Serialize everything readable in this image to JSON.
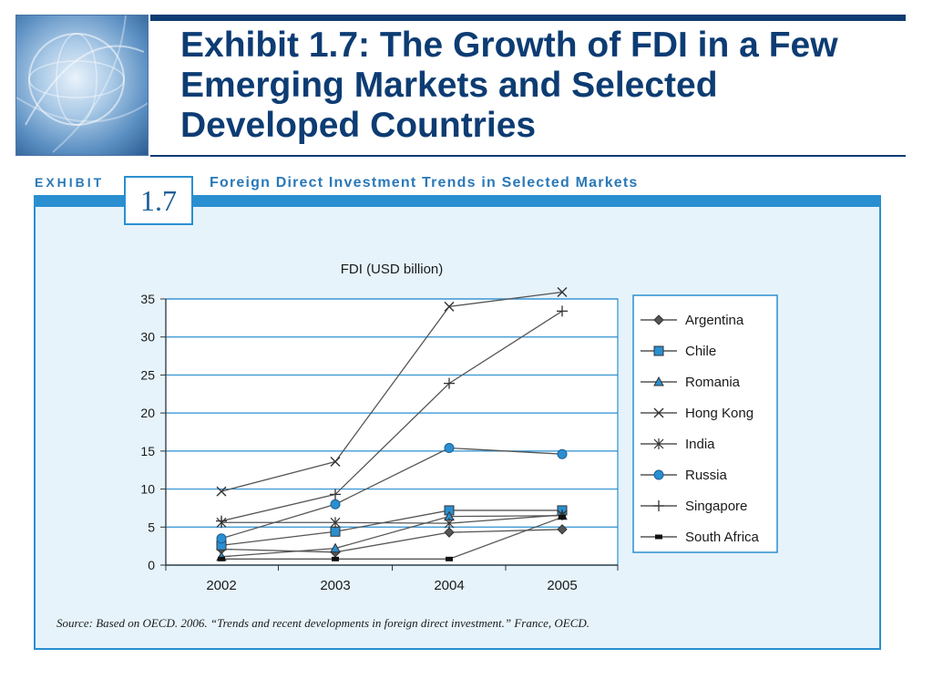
{
  "slide": {
    "title": "Exhibit 1.7: The Growth of FDI in a Few Emerging Markets and Selected Developed Countries"
  },
  "exhibit": {
    "label": "EXHIBIT",
    "number": "1.7",
    "caption": "Foreign Direct Investment Trends in Selected Markets",
    "source": "Source:  Based on OECD. 2006. “Trends and recent developments in foreign direct investment.” France, OECD."
  },
  "chart_data": {
    "type": "line",
    "title": "FDI (USD billion)",
    "xlabel": "",
    "ylabel": "",
    "x": [
      "2002",
      "2003",
      "2004",
      "2005"
    ],
    "ylim": [
      0,
      35
    ],
    "yticks": [
      0,
      5,
      10,
      15,
      20,
      25,
      30,
      35
    ],
    "grid": true,
    "legend_position": "right",
    "series": [
      {
        "name": "Argentina",
        "marker": "diamond",
        "values": [
          2.1,
          1.7,
          4.3,
          4.7
        ]
      },
      {
        "name": "Chile",
        "marker": "square",
        "values": [
          2.6,
          4.4,
          7.2,
          7.2
        ]
      },
      {
        "name": "Romania",
        "marker": "triangle",
        "values": [
          1.1,
          2.2,
          6.4,
          6.5
        ]
      },
      {
        "name": "Hong Kong",
        "marker": "x",
        "values": [
          9.7,
          13.6,
          34.0,
          35.9
        ]
      },
      {
        "name": "India",
        "marker": "asterisk",
        "values": [
          5.6,
          5.6,
          5.5,
          6.6
        ]
      },
      {
        "name": "Russia",
        "marker": "circle",
        "values": [
          3.5,
          8.0,
          15.4,
          14.6
        ]
      },
      {
        "name": "Singapore",
        "marker": "plus",
        "values": [
          5.8,
          9.3,
          23.9,
          33.4
        ]
      },
      {
        "name": "South Africa",
        "marker": "bar",
        "values": [
          0.8,
          0.8,
          0.8,
          6.3
        ]
      }
    ],
    "colors": {
      "line": "#555555",
      "gridline": "#2a8fd0",
      "accent": "#2a8fd0",
      "marker_blue": "#2a8fd0",
      "marker_dark": "#333333"
    }
  }
}
